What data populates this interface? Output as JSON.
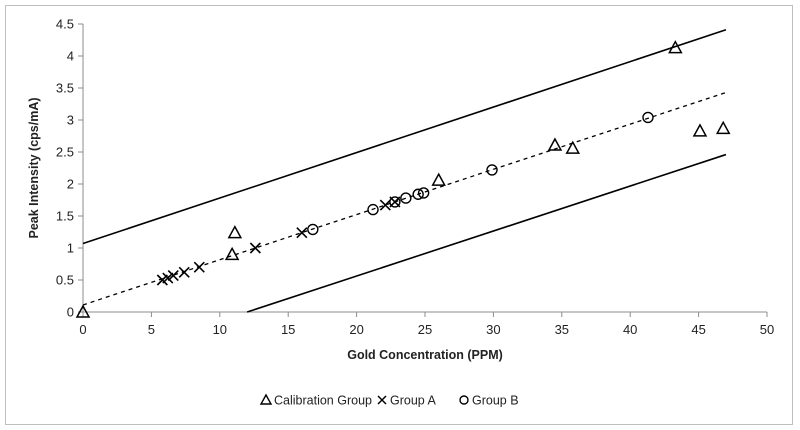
{
  "chart_data": {
    "type": "scatter",
    "title": "",
    "xlabel": "Gold Concentration (PPM)",
    "ylabel": "Peak Intensity (cps/mA)",
    "xlim": [
      0,
      50
    ],
    "ylim": [
      0,
      4.5
    ],
    "x_ticks": [
      "0",
      "5",
      "10",
      "15",
      "20",
      "25",
      "30",
      "35",
      "40",
      "45",
      "50"
    ],
    "y_ticks": [
      "0",
      "0.5",
      "1",
      "1.5",
      "2",
      "2.5",
      "3",
      "3.5",
      "4",
      "4.5"
    ],
    "grid": false,
    "legend_position": "bottom",
    "series": [
      {
        "name": "Calibration Group",
        "marker": "triangle",
        "points": [
          [
            0,
            0
          ],
          [
            10.9,
            0.9
          ],
          [
            11.1,
            1.24
          ],
          [
            26.0,
            2.06
          ],
          [
            34.5,
            2.61
          ],
          [
            35.8,
            2.56
          ],
          [
            43.3,
            4.13
          ],
          [
            45.1,
            2.83
          ],
          [
            46.8,
            2.87
          ]
        ]
      },
      {
        "name": "Group A",
        "marker": "x",
        "points": [
          [
            5.8,
            0.5
          ],
          [
            6.2,
            0.53
          ],
          [
            6.6,
            0.57
          ],
          [
            7.4,
            0.62
          ],
          [
            8.5,
            0.7
          ],
          [
            12.6,
            1.0
          ],
          [
            16.0,
            1.24
          ],
          [
            22.1,
            1.67
          ],
          [
            22.8,
            1.72
          ]
        ]
      },
      {
        "name": "Group B",
        "marker": "circle",
        "points": [
          [
            16.8,
            1.29
          ],
          [
            21.2,
            1.6
          ],
          [
            22.8,
            1.72
          ],
          [
            23.6,
            1.78
          ],
          [
            24.5,
            1.84
          ],
          [
            24.9,
            1.86
          ],
          [
            29.9,
            2.22
          ],
          [
            41.3,
            3.04
          ]
        ]
      }
    ],
    "lines": [
      {
        "name": "calibration-fit",
        "style": "dashed",
        "from": [
          0,
          0.11
        ],
        "to": [
          47,
          3.43
        ]
      },
      {
        "name": "upper-bound",
        "style": "solid",
        "from": [
          0,
          1.07
        ],
        "to": [
          47,
          4.41
        ]
      },
      {
        "name": "lower-bound",
        "style": "solid",
        "from": [
          12,
          0
        ],
        "to": [
          47,
          2.46
        ]
      }
    ]
  },
  "legend": {
    "items": [
      {
        "label": "Calibration Group",
        "marker": "triangle"
      },
      {
        "label": "Group A",
        "marker": "x"
      },
      {
        "label": "Group B",
        "marker": "circle"
      }
    ]
  }
}
